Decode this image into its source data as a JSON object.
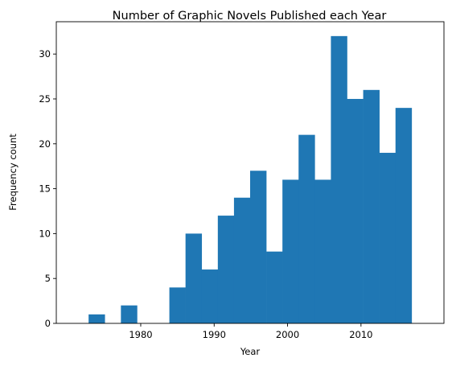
{
  "chart_data": {
    "type": "bar",
    "title": "Number of Graphic Novels Published each Year",
    "xlabel": "Year",
    "ylabel": "Frequency count",
    "bin_edges": [
      1972.9,
      1975.1,
      1977.3,
      1979.5,
      1981.7,
      1983.9,
      1986.1,
      1988.3,
      1990.5,
      1992.7,
      1994.9,
      1997.1,
      1999.3,
      2001.5,
      2003.7,
      2005.9,
      2008.1,
      2010.3,
      2012.5,
      2014.7,
      2016.9
    ],
    "values": [
      1,
      0,
      2,
      0,
      0,
      4,
      10,
      6,
      12,
      14,
      17,
      8,
      16,
      21,
      16,
      32,
      25,
      26,
      19,
      24
    ],
    "xlim": [
      1968.5,
      2021.3
    ],
    "ylim": [
      0,
      33.6
    ],
    "xticks": [
      1980,
      1990,
      2000,
      2010
    ],
    "yticks": [
      0,
      5,
      10,
      15,
      20,
      25,
      30
    ],
    "grid": false,
    "colors": {
      "bar": "#1f77b4"
    }
  }
}
